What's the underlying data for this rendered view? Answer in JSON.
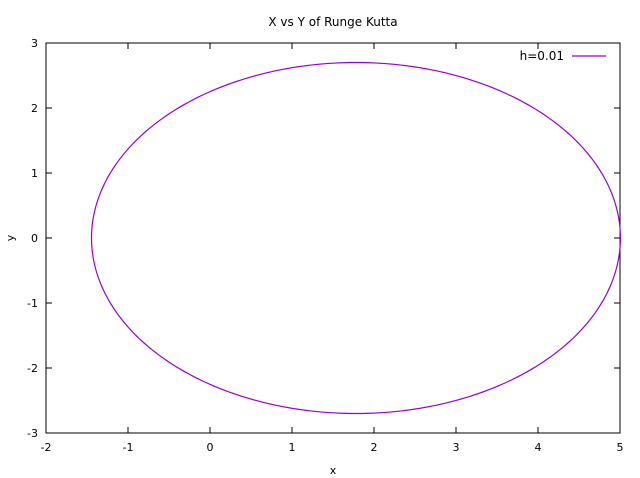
{
  "chart_data": {
    "type": "line",
    "title": "X vs Y of Runge Kutta",
    "xlabel": "x",
    "ylabel": "y",
    "xlim": [
      -2,
      5
    ],
    "ylim": [
      -3,
      3
    ],
    "xticks": [
      -2,
      -1,
      0,
      1,
      2,
      3,
      4,
      5
    ],
    "yticks": [
      -3,
      -2,
      -1,
      0,
      1,
      2,
      3
    ],
    "grid": false,
    "legend": "top-right",
    "series": [
      {
        "name": "h=0.01",
        "color": "#9400d3",
        "shape": "ellipse",
        "center": [
          1.78,
          0
        ],
        "x_range": [
          -1.45,
          5.0
        ],
        "y_range": [
          -2.7,
          2.7
        ]
      }
    ]
  }
}
